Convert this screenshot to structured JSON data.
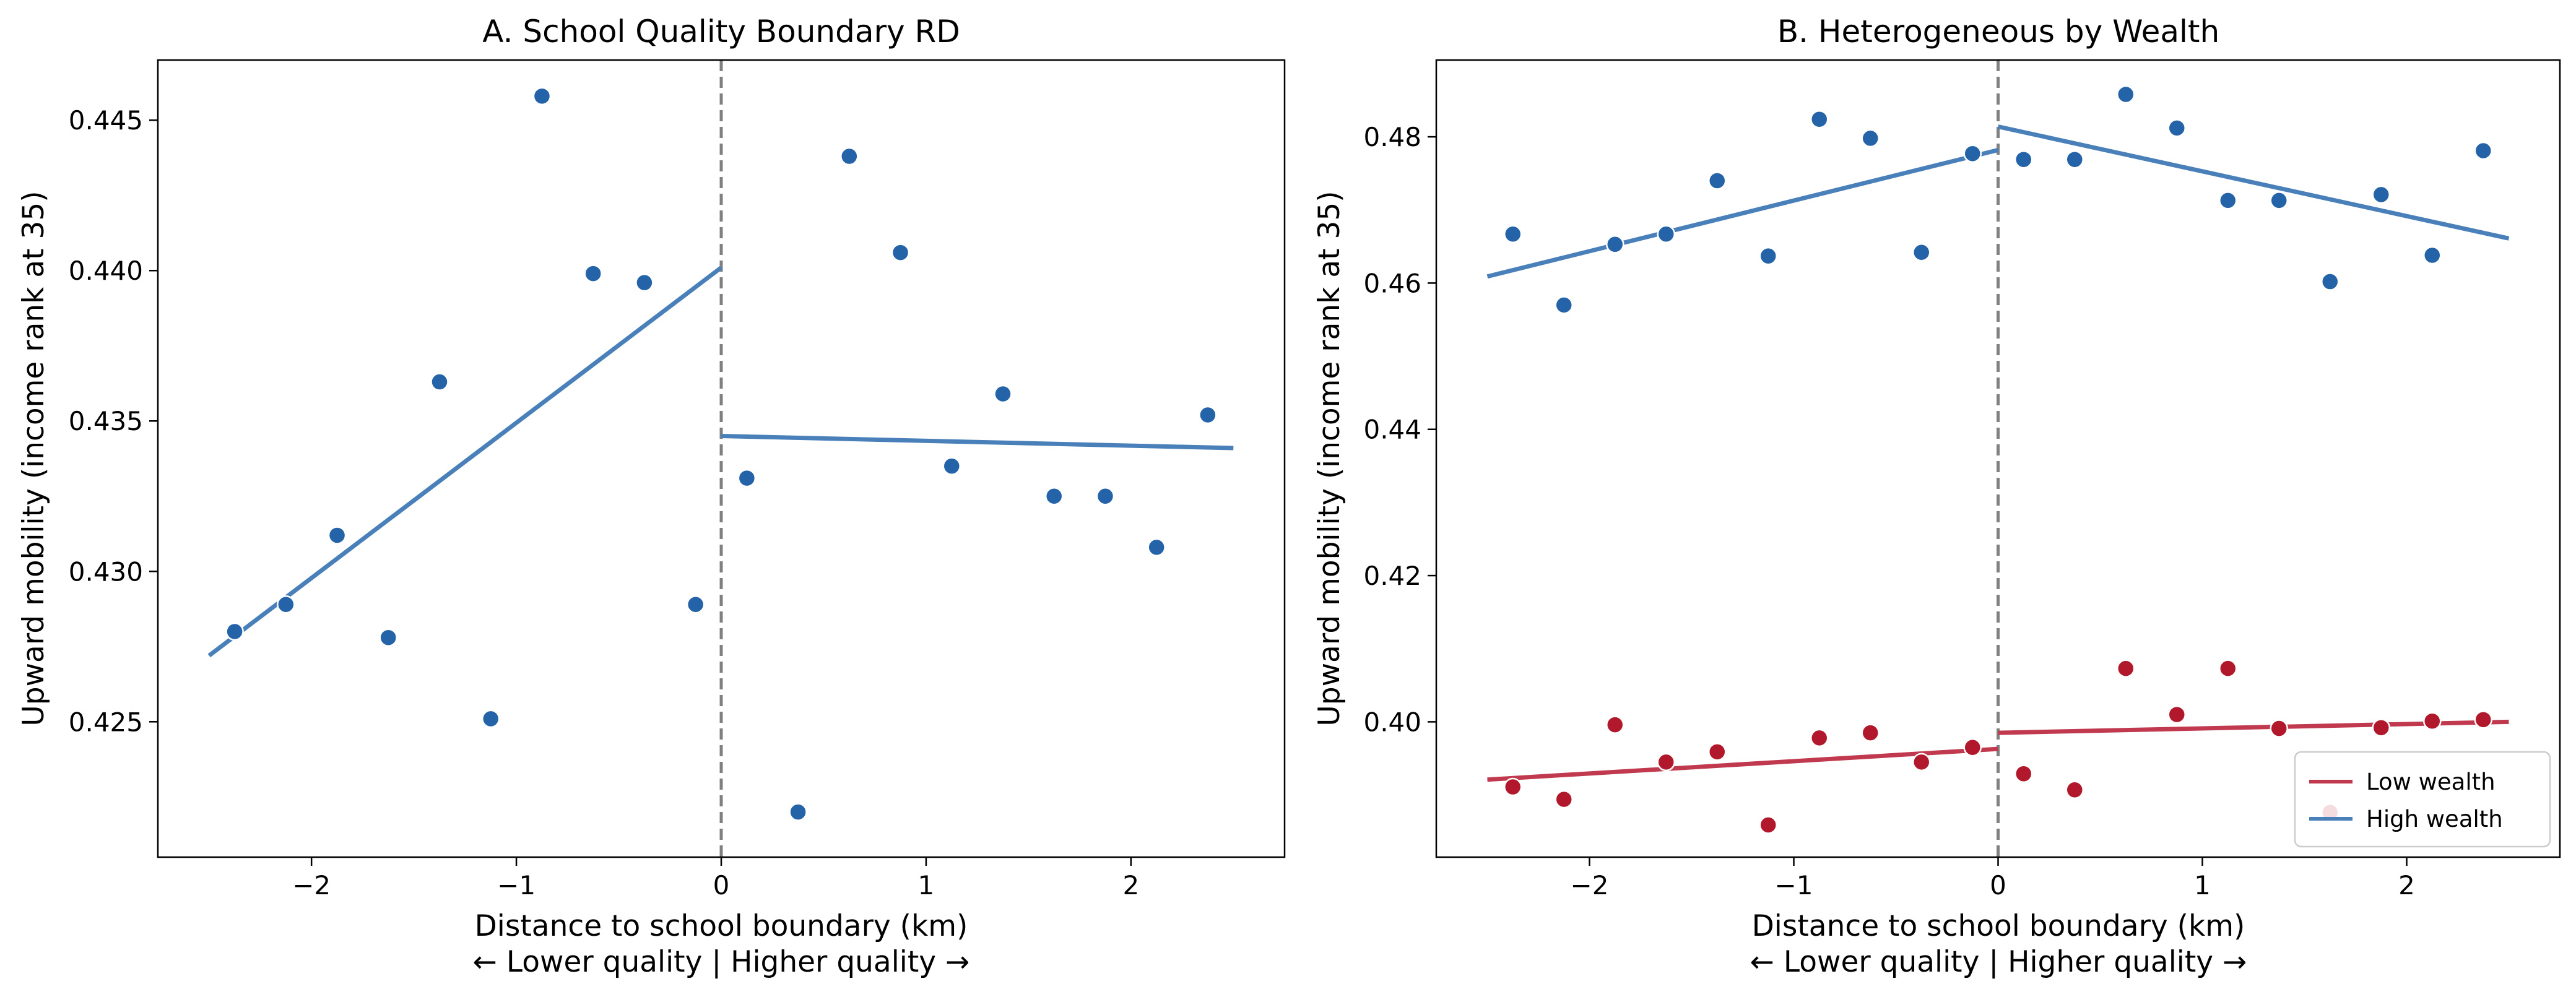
{
  "colors": {
    "high_point": "#2563a8",
    "high_line": "#4a80ba",
    "low_point": "#b2182b",
    "low_line": "#c0394f",
    "boundary": "#808080"
  },
  "chart_data": [
    {
      "type": "scatter",
      "title": "A. School Quality Boundary RD",
      "xlabel": "Distance to school boundary (km)",
      "xlabel2": "← Lower quality | Higher quality →",
      "ylabel": "Upward mobility (income rank at 35)",
      "xlim": [
        -2.75,
        2.75
      ],
      "ylim": [
        0.4205,
        0.447
      ],
      "xticks": [
        -2,
        -1,
        0,
        1,
        2
      ],
      "xtick_labels": [
        "−2",
        "−1",
        "0",
        "1",
        "2"
      ],
      "yticks": [
        0.425,
        0.43,
        0.435,
        0.44,
        0.445
      ],
      "ytick_labels": [
        "0.425",
        "0.430",
        "0.435",
        "0.440",
        "0.445"
      ],
      "grid": false,
      "cutoff": 0,
      "series": [
        {
          "color_key": "high",
          "x": [
            -2.375,
            -2.125,
            -1.875,
            -1.625,
            -1.375,
            -1.125,
            -0.875,
            -0.625,
            -0.375,
            -0.125,
            0.125,
            0.375,
            0.625,
            0.875,
            1.125,
            1.375,
            1.625,
            1.875,
            2.125,
            2.375
          ],
          "y": [
            0.428,
            0.4289,
            0.4312,
            0.4278,
            0.4363,
            0.4251,
            0.4458,
            0.4399,
            0.4396,
            0.4289,
            0.4331,
            0.422,
            0.4438,
            0.4406,
            0.4335,
            0.4359,
            0.4325,
            0.4325,
            0.4308,
            0.4352
          ],
          "fit_left": {
            "x": [
              -2.5,
              0
            ],
            "y": [
              0.4272,
              0.4401
            ]
          },
          "fit_right": {
            "x": [
              0,
              2.5
            ],
            "y": [
              0.4345,
              0.4341
            ]
          }
        }
      ]
    },
    {
      "type": "scatter",
      "title": "B. Heterogeneous by Wealth",
      "xlabel": "Distance to school boundary (km)",
      "xlabel2": "← Lower quality | Higher quality →",
      "ylabel": "Upward mobility (income rank at 35)",
      "xlim": [
        -2.75,
        2.75
      ],
      "ylim": [
        0.3815,
        0.4905
      ],
      "xticks": [
        -2,
        -1,
        0,
        1,
        2
      ],
      "xtick_labels": [
        "−2",
        "−1",
        "0",
        "1",
        "2"
      ],
      "yticks": [
        0.4,
        0.42,
        0.44,
        0.46,
        0.48
      ],
      "ytick_labels": [
        "0.40",
        "0.42",
        "0.44",
        "0.46",
        "0.48"
      ],
      "grid": false,
      "cutoff": 0,
      "legend_position": "lower-right",
      "series": [
        {
          "name": "Low wealth",
          "color_key": "low",
          "x": [
            -2.375,
            -2.125,
            -1.875,
            -1.625,
            -1.375,
            -1.125,
            -0.875,
            -0.625,
            -0.375,
            -0.125,
            0.125,
            0.375,
            0.625,
            0.875,
            1.125,
            1.375,
            1.625,
            1.875,
            2.125,
            2.375
          ],
          "y": [
            0.3911,
            0.3894,
            0.3996,
            0.3945,
            0.3959,
            0.3859,
            0.3978,
            0.3985,
            0.3945,
            0.3965,
            0.3929,
            0.3907,
            0.4073,
            0.401,
            0.4073,
            0.3991,
            0.3876,
            0.3992,
            0.4001,
            0.4003
          ],
          "fit_left": {
            "x": [
              -2.5,
              0
            ],
            "y": [
              0.3921,
              0.3963
            ]
          },
          "fit_right": {
            "x": [
              0,
              2.5
            ],
            "y": [
              0.3985,
              0.4
            ]
          }
        },
        {
          "name": "High wealth",
          "color_key": "high",
          "x": [
            -2.375,
            -2.125,
            -1.875,
            -1.625,
            -1.375,
            -1.125,
            -0.875,
            -0.625,
            -0.375,
            -0.125,
            0.125,
            0.375,
            0.625,
            0.875,
            1.125,
            1.375,
            1.625,
            1.875,
            2.125,
            2.375
          ],
          "y": [
            0.4667,
            0.457,
            0.4653,
            0.4667,
            0.474,
            0.4637,
            0.4824,
            0.4798,
            0.4642,
            0.4777,
            0.4769,
            0.4769,
            0.4858,
            0.4812,
            0.4713,
            0.4713,
            0.4602,
            0.4721,
            0.4638,
            0.4781
          ],
          "fit_left": {
            "x": [
              -2.5,
              0
            ],
            "y": [
              0.4609,
              0.4782
            ]
          },
          "fit_right": {
            "x": [
              0,
              2.5
            ],
            "y": [
              0.4814,
              0.4661
            ]
          }
        }
      ]
    }
  ]
}
